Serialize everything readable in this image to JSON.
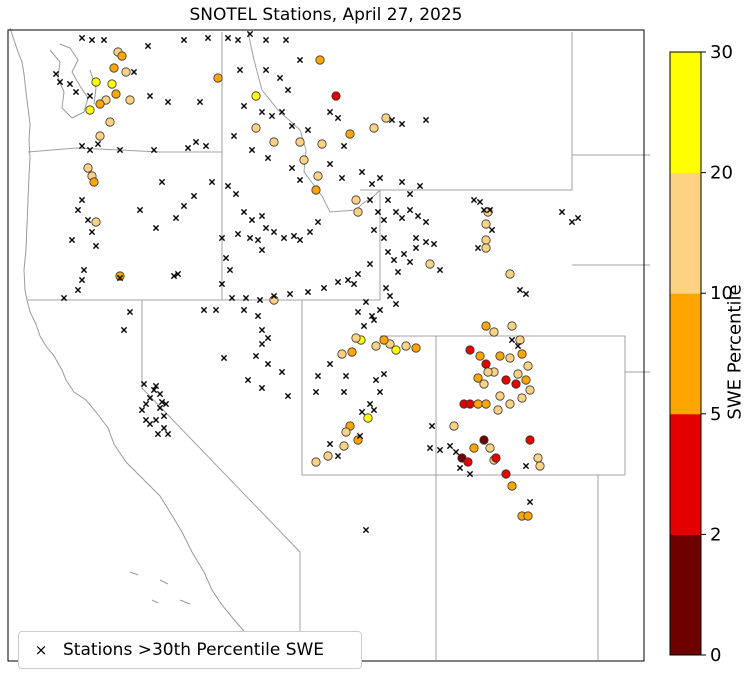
{
  "title": "SNOTEL Stations, April 27, 2025",
  "legend": {
    "marker_symbol": "×",
    "label": "Stations >30th Percentile SWE"
  },
  "colorbar": {
    "label": "SWE Percentile",
    "ticks": [
      "0",
      "2",
      "5",
      "10",
      "20",
      "30"
    ],
    "bins": [
      {
        "from": 0,
        "to": 2,
        "color": "#6e0000"
      },
      {
        "from": 2,
        "to": 5,
        "color": "#e50000"
      },
      {
        "from": 5,
        "to": 10,
        "color": "#ffa500"
      },
      {
        "from": 10,
        "to": 20,
        "color": "#fdd383"
      },
      {
        "from": 20,
        "to": 30,
        "color": "#ffff00"
      }
    ]
  },
  "colors": {
    "state_line": "#a0a0a0",
    "coast": "#9a9a9a",
    "frame": "#000000",
    "marker_edge": "#333333"
  }
}
